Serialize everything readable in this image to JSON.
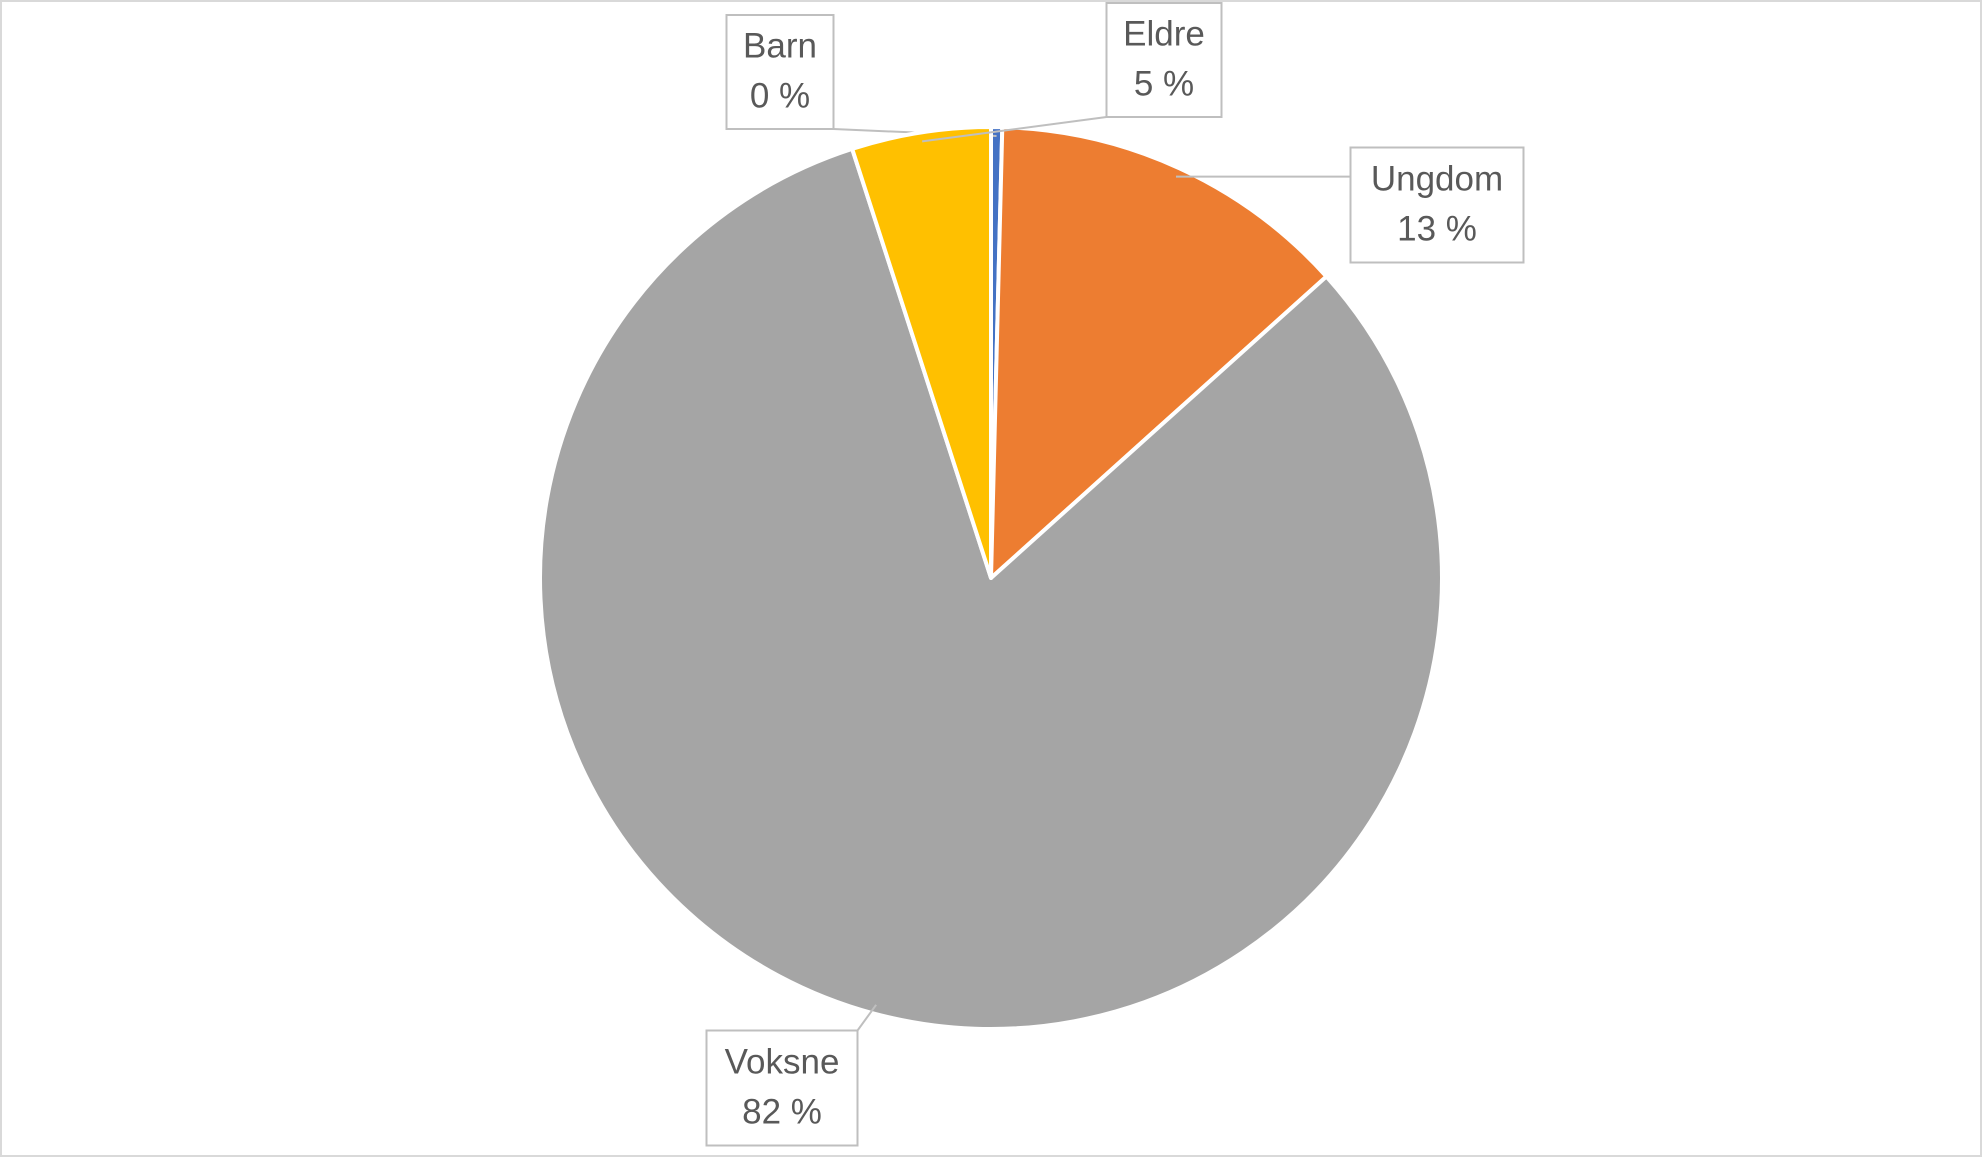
{
  "chart_data": {
    "type": "pie",
    "categories": [
      "Barn",
      "Ungdom",
      "Voksne",
      "Eldre"
    ],
    "values": [
      0.4,
      13,
      82,
      5
    ],
    "value_labels": [
      "0 %",
      "13 %",
      "82 %",
      "5 %"
    ],
    "colors": [
      "#4472c4",
      "#ed7d31",
      "#a5a5a5",
      "#ffc000"
    ]
  }
}
